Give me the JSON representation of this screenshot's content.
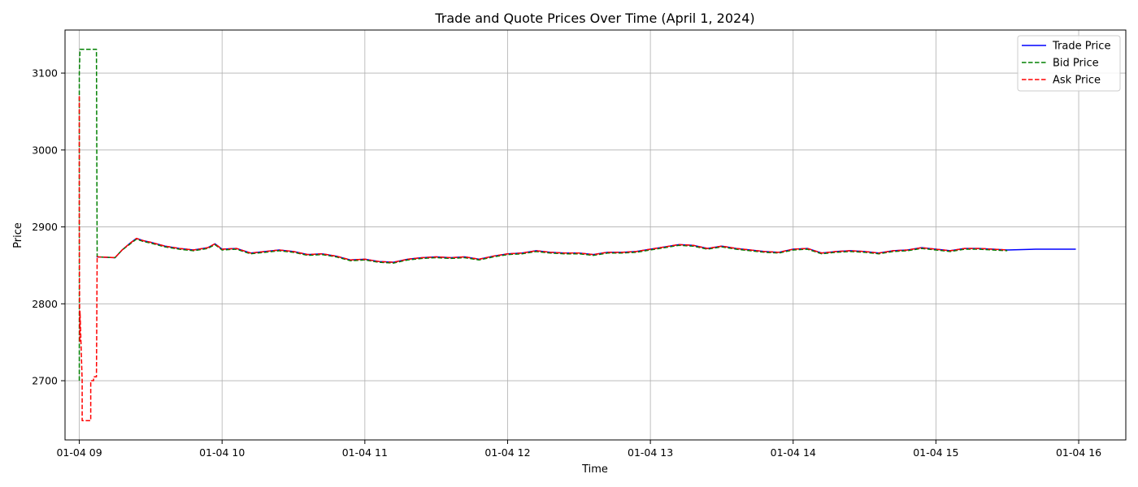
{
  "chart_data": {
    "type": "line",
    "title": "Trade and Quote Prices Over Time (April 1, 2024)",
    "xlabel": "Time",
    "ylabel": "Price",
    "xlim": [
      8.9,
      16.33
    ],
    "ylim": [
      2623,
      3156
    ],
    "x_ticks": [
      {
        "value": 9,
        "label": "01-04 09"
      },
      {
        "value": 10,
        "label": "01-04 10"
      },
      {
        "value": 11,
        "label": "01-04 11"
      },
      {
        "value": 12,
        "label": "01-04 12"
      },
      {
        "value": 13,
        "label": "01-04 13"
      },
      {
        "value": 14,
        "label": "01-04 14"
      },
      {
        "value": 15,
        "label": "01-04 15"
      },
      {
        "value": 16,
        "label": "01-04 16"
      }
    ],
    "y_ticks": [
      {
        "value": 2700,
        "label": "2700"
      },
      {
        "value": 2800,
        "label": "2800"
      },
      {
        "value": 2900,
        "label": "2900"
      },
      {
        "value": 3000,
        "label": "3000"
      },
      {
        "value": 3100,
        "label": "3100"
      }
    ],
    "grid": true,
    "legend_position": "top-right",
    "series": [
      {
        "name": "Trade Price",
        "color": "#0000ff",
        "style": "solid",
        "x": [
          9.12,
          9.25,
          9.3,
          9.35,
          9.4,
          9.45,
          9.5,
          9.6,
          9.7,
          9.8,
          9.9,
          9.95,
          10.0,
          10.1,
          10.2,
          10.3,
          10.4,
          10.5,
          10.6,
          10.7,
          10.8,
          10.9,
          11.0,
          11.1,
          11.2,
          11.3,
          11.4,
          11.5,
          11.6,
          11.7,
          11.8,
          11.9,
          12.0,
          12.1,
          12.2,
          12.3,
          12.4,
          12.5,
          12.6,
          12.7,
          12.8,
          12.9,
          13.0,
          13.1,
          13.2,
          13.3,
          13.4,
          13.5,
          13.6,
          13.7,
          13.8,
          13.9,
          14.0,
          14.1,
          14.2,
          14.3,
          14.4,
          14.5,
          14.6,
          14.7,
          14.8,
          14.9,
          15.0,
          15.1,
          15.2,
          15.3,
          15.4,
          15.5,
          15.7,
          15.98
        ],
        "y": [
          2861,
          2860,
          2870,
          2878,
          2885,
          2882,
          2880,
          2875,
          2872,
          2870,
          2873,
          2878,
          2871,
          2872,
          2866,
          2868,
          2870,
          2868,
          2864,
          2865,
          2862,
          2857,
          2858,
          2855,
          2854,
          2858,
          2860,
          2861,
          2860,
          2861,
          2858,
          2862,
          2865,
          2866,
          2869,
          2867,
          2866,
          2866,
          2864,
          2867,
          2867,
          2868,
          2871,
          2874,
          2877,
          2876,
          2872,
          2875,
          2872,
          2870,
          2868,
          2867,
          2871,
          2872,
          2866,
          2868,
          2869,
          2868,
          2866,
          2869,
          2870,
          2873,
          2871,
          2869,
          2872,
          2872,
          2871,
          2870,
          2871,
          2871
        ]
      },
      {
        "name": "Bid Price",
        "color": "#008000",
        "style": "dashed",
        "x": [
          9.0,
          9.0,
          9.0,
          9.005,
          9.01,
          9.12,
          9.125,
          9.13,
          9.25,
          9.3,
          9.35,
          9.4,
          9.45,
          9.5,
          9.6,
          9.7,
          9.8,
          9.9,
          9.95,
          10.0,
          10.1,
          10.2,
          10.3,
          10.4,
          10.5,
          10.6,
          10.7,
          10.8,
          10.9,
          11.0,
          11.1,
          11.2,
          11.3,
          11.4,
          11.5,
          11.6,
          11.7,
          11.8,
          11.9,
          12.0,
          12.1,
          12.2,
          12.3,
          12.4,
          12.5,
          12.6,
          12.7,
          12.8,
          12.9,
          13.0,
          13.1,
          13.2,
          13.3,
          13.4,
          13.5,
          13.6,
          13.7,
          13.8,
          13.9,
          14.0,
          14.1,
          14.2,
          14.3,
          14.4,
          14.5,
          14.6,
          14.7,
          14.8,
          14.9,
          15.0,
          15.1,
          15.2,
          15.3,
          15.4,
          15.5
        ],
        "y": [
          2700,
          2880,
          3100,
          3131,
          3131,
          3131,
          2862,
          2861,
          2860,
          2870,
          2877,
          2884,
          2881,
          2879,
          2874,
          2871,
          2869,
          2872,
          2877,
          2870,
          2871,
          2865,
          2867,
          2869,
          2867,
          2863,
          2864,
          2861,
          2856,
          2857,
          2854,
          2853,
          2857,
          2859,
          2860,
          2859,
          2860,
          2857,
          2861,
          2864,
          2865,
          2868,
          2866,
          2865,
          2865,
          2863,
          2866,
          2866,
          2867,
          2870,
          2873,
          2876,
          2875,
          2871,
          2874,
          2871,
          2869,
          2867,
          2866,
          2870,
          2871,
          2865,
          2867,
          2868,
          2867,
          2865,
          2868,
          2869,
          2872,
          2870,
          2868,
          2871,
          2871,
          2870,
          2869
        ]
      },
      {
        "name": "Ask Price",
        "color": "#ff0000",
        "style": "dashed",
        "x": [
          9.0,
          9.0,
          9.003,
          9.005,
          9.02,
          9.02,
          9.08,
          9.08,
          9.1,
          9.1,
          9.12,
          9.125,
          9.13,
          9.25,
          9.3,
          9.35,
          9.4,
          9.45,
          9.5,
          9.6,
          9.7,
          9.8,
          9.9,
          9.95,
          10.0,
          10.1,
          10.2,
          10.3,
          10.4,
          10.5,
          10.6,
          10.7,
          10.8,
          10.9,
          11.0,
          11.1,
          11.2,
          11.3,
          11.4,
          11.5,
          11.6,
          11.7,
          11.8,
          11.9,
          12.0,
          12.1,
          12.2,
          12.3,
          12.4,
          12.5,
          12.6,
          12.7,
          12.8,
          12.9,
          13.0,
          13.1,
          13.2,
          13.3,
          13.4,
          13.5,
          13.6,
          13.7,
          13.8,
          13.9,
          14.0,
          14.1,
          14.2,
          14.3,
          14.4,
          14.5,
          14.6,
          14.7,
          14.8,
          14.9,
          15.0,
          15.1,
          15.2,
          15.3,
          15.4,
          15.5
        ],
        "y": [
          3070,
          2900,
          2750,
          2790,
          2700,
          2648,
          2648,
          2700,
          2700,
          2705,
          2705,
          2862,
          2861,
          2860,
          2870,
          2878,
          2885,
          2882,
          2880,
          2875,
          2872,
          2870,
          2873,
          2878,
          2871,
          2872,
          2866,
          2868,
          2870,
          2868,
          2864,
          2865,
          2862,
          2857,
          2858,
          2855,
          2854,
          2858,
          2860,
          2861,
          2860,
          2861,
          2858,
          2862,
          2865,
          2866,
          2869,
          2867,
          2866,
          2866,
          2864,
          2867,
          2867,
          2868,
          2871,
          2874,
          2877,
          2876,
          2872,
          2875,
          2872,
          2870,
          2868,
          2867,
          2871,
          2872,
          2866,
          2868,
          2869,
          2868,
          2866,
          2869,
          2870,
          2873,
          2871,
          2869,
          2872,
          2872,
          2871,
          2870
        ]
      }
    ]
  }
}
